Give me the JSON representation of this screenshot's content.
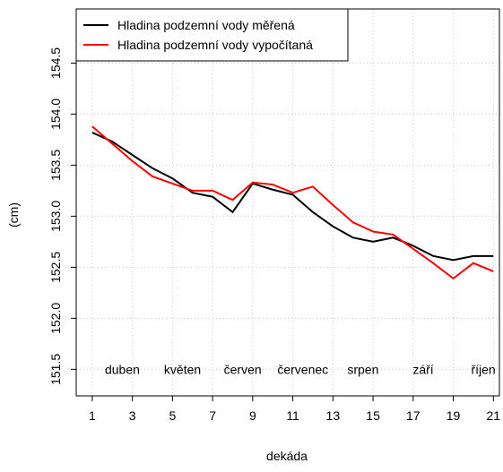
{
  "chart_data": {
    "type": "line",
    "x_label": "dekáda",
    "y_label": "(cm)",
    "x": [
      1,
      2,
      3,
      4,
      5,
      6,
      7,
      8,
      9,
      10,
      11,
      12,
      13,
      14,
      15,
      16,
      17,
      18,
      19,
      20,
      21
    ],
    "series": [
      {
        "name": "Hladina podzemní vody měřená",
        "color": "#000000",
        "values": [
          153.82,
          153.73,
          153.6,
          153.47,
          153.37,
          153.23,
          153.19,
          153.04,
          153.32,
          153.26,
          153.21,
          153.04,
          152.9,
          152.79,
          152.75,
          152.79,
          152.71,
          152.61,
          152.57,
          152.61,
          152.61
        ]
      },
      {
        "name": "Hladina podzemní vody vypočítaná",
        "color": "#ff0000",
        "values": [
          153.88,
          153.71,
          153.54,
          153.39,
          153.32,
          153.25,
          153.25,
          153.16,
          153.33,
          153.31,
          153.23,
          153.29,
          153.11,
          152.94,
          152.85,
          152.82,
          152.68,
          152.54,
          152.39,
          152.54,
          152.46
        ]
      }
    ],
    "xlim": [
      0.2,
      21.3
    ],
    "ylim": [
      151.24,
      155.03
    ],
    "xticks": [
      1,
      3,
      5,
      7,
      9,
      11,
      13,
      15,
      17,
      19,
      21
    ],
    "yticks": [
      151.5,
      {
        "value": 152,
        "label": "152.0"
      },
      152.5,
      {
        "value": 153,
        "label": "153.0"
      },
      153.5,
      {
        "value": 154,
        "label": "154.0"
      },
      154.5
    ],
    "grid": true,
    "legend": "top-left",
    "annotations": [
      {
        "text": "duben",
        "x": 2.5,
        "y": 151.5
      },
      {
        "text": "květen",
        "x": 5.5,
        "y": 151.5
      },
      {
        "text": "červen",
        "x": 8.5,
        "y": 151.5
      },
      {
        "text": "červenec",
        "x": 11.5,
        "y": 151.5
      },
      {
        "text": "srpen",
        "x": 14.5,
        "y": 151.5
      },
      {
        "text": "září",
        "x": 17.5,
        "y": 151.5
      },
      {
        "text": "říjen",
        "x": 20.5,
        "y": 151.5
      }
    ]
  }
}
